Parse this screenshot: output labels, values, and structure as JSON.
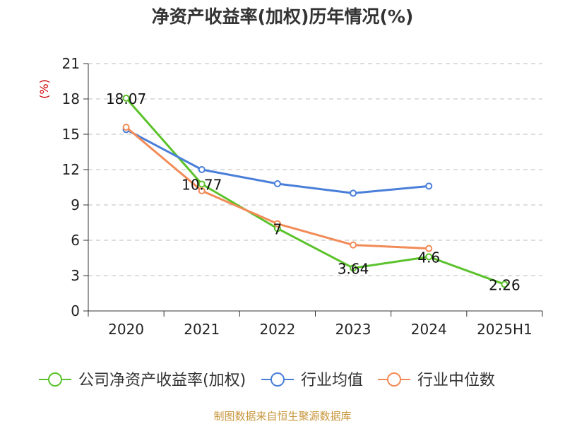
{
  "chart_data": {
    "type": "line",
    "title": "净资产收益率(加权)历年情况(%)",
    "ylabel": "(%)",
    "xlabel": "",
    "categories": [
      "2020",
      "2021",
      "2022",
      "2023",
      "2024",
      "2025H1"
    ],
    "ylim": [
      0,
      21
    ],
    "yticks": [
      0,
      3,
      6,
      9,
      12,
      15,
      18,
      21
    ],
    "grid": true,
    "legend_position": "bottom",
    "series": [
      {
        "name": "公司净资产收益率(加权)",
        "color": "#5bc22b",
        "values": [
          18.07,
          10.77,
          7,
          3.64,
          4.6,
          2.26
        ],
        "data_labels": [
          "18.07",
          "10.77",
          "7",
          "3.64",
          "4.6",
          "2.26"
        ]
      },
      {
        "name": "行业均值",
        "color": "#4a7fd9",
        "values": [
          15.4,
          12.0,
          10.8,
          10.0,
          10.6,
          null
        ]
      },
      {
        "name": "行业中位数",
        "color": "#f28b57",
        "values": [
          15.6,
          10.2,
          7.4,
          5.6,
          5.3,
          null
        ]
      }
    ]
  },
  "source_note": "制图数据来自恒生聚源数据库"
}
